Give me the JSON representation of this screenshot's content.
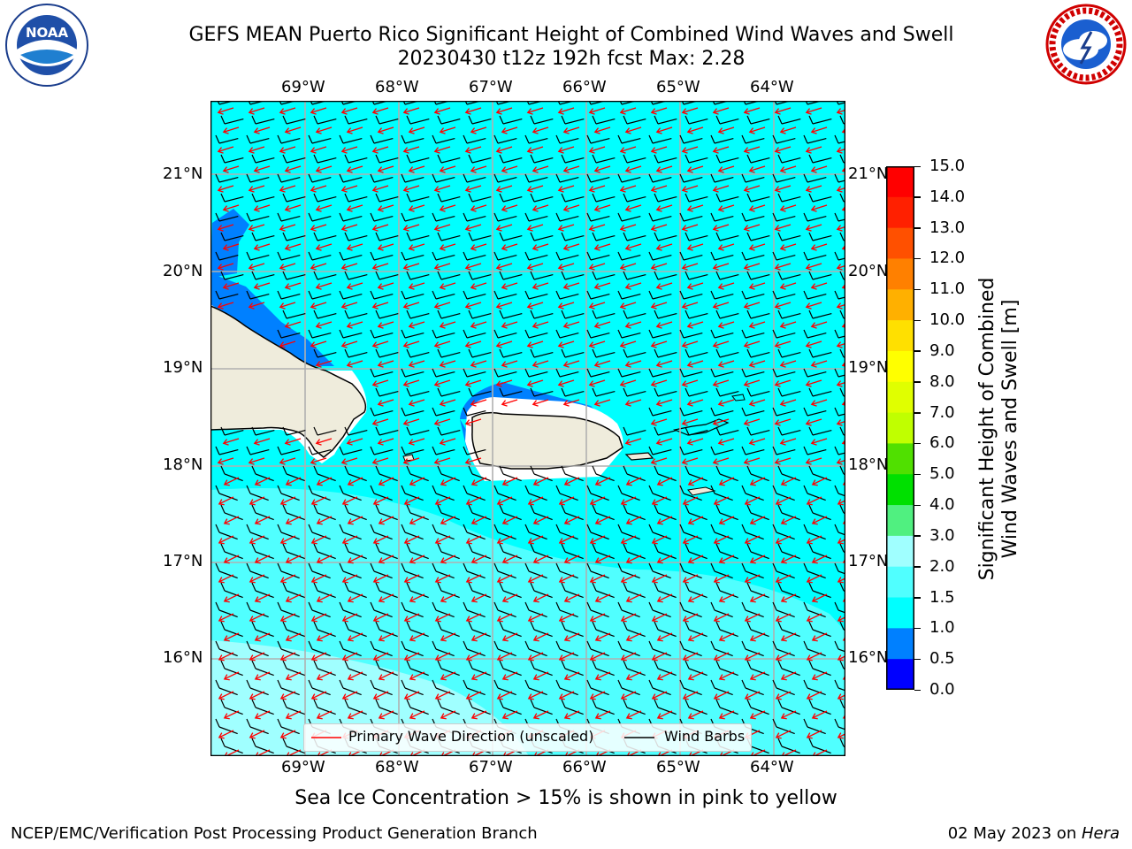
{
  "header": {
    "title_line1": "GEFS MEAN Puerto Rico Significant Height of Combined Wind Waves and Swell",
    "title_line2": "20230430 t12z 192h fcst   Max: 2.28"
  },
  "logos": {
    "noaa": {
      "text": "NOAA",
      "ring_text": "NATIONAL OCEANIC AND ATMOSPHERIC ADMINISTRATION · U.S. DEPARTMENT OF COMMERCE"
    },
    "nws": {
      "ring_text": "NATIONAL WEATHER SERVICE"
    }
  },
  "map": {
    "lon_labels": [
      "69°W",
      "68°W",
      "67°W",
      "66°W",
      "65°W",
      "64°W"
    ],
    "lat_labels": [
      "21°N",
      "20°N",
      "19°N",
      "18°N",
      "17°N",
      "16°N"
    ],
    "legend": {
      "wave": "Primary Wave Direction (unscaled)",
      "barb": "Wind Barbs"
    },
    "colors": {
      "ocean": "#00ffff",
      "low": "#0080ff",
      "mid": "#50ffff",
      "high": "#a0ffff",
      "land": "#efecdc",
      "arrow": "#ff0000"
    }
  },
  "colorbar": {
    "label_line1": "Significant Height of Combined",
    "label_line2": "Wind Waves and Swell [m]",
    "ticks": [
      "15.0",
      "14.0",
      "13.0",
      "12.0",
      "11.0",
      "10.0",
      "9.0",
      "8.0",
      "7.0",
      "6.0",
      "5.0",
      "4.0",
      "3.0",
      "2.0",
      "1.5",
      "1.0",
      "0.5",
      "0.0"
    ],
    "colors": [
      "#ff0000",
      "#ff2000",
      "#ff5000",
      "#ff8000",
      "#ffb000",
      "#ffe000",
      "#ffff00",
      "#e0ff00",
      "#c0ff00",
      "#50e000",
      "#00e000",
      "#50f080",
      "#a0ffff",
      "#50ffff",
      "#00ffff",
      "#0080ff",
      "#0000ff"
    ]
  },
  "notes": {
    "sea_ice": "Sea Ice Concentration > 15% is shown in pink to yellow"
  },
  "footer": {
    "left": "NCEP/EMC/Verification Post Processing Product Generation Branch",
    "right_date": "02 May 2023 on ",
    "right_host": "Hera"
  }
}
